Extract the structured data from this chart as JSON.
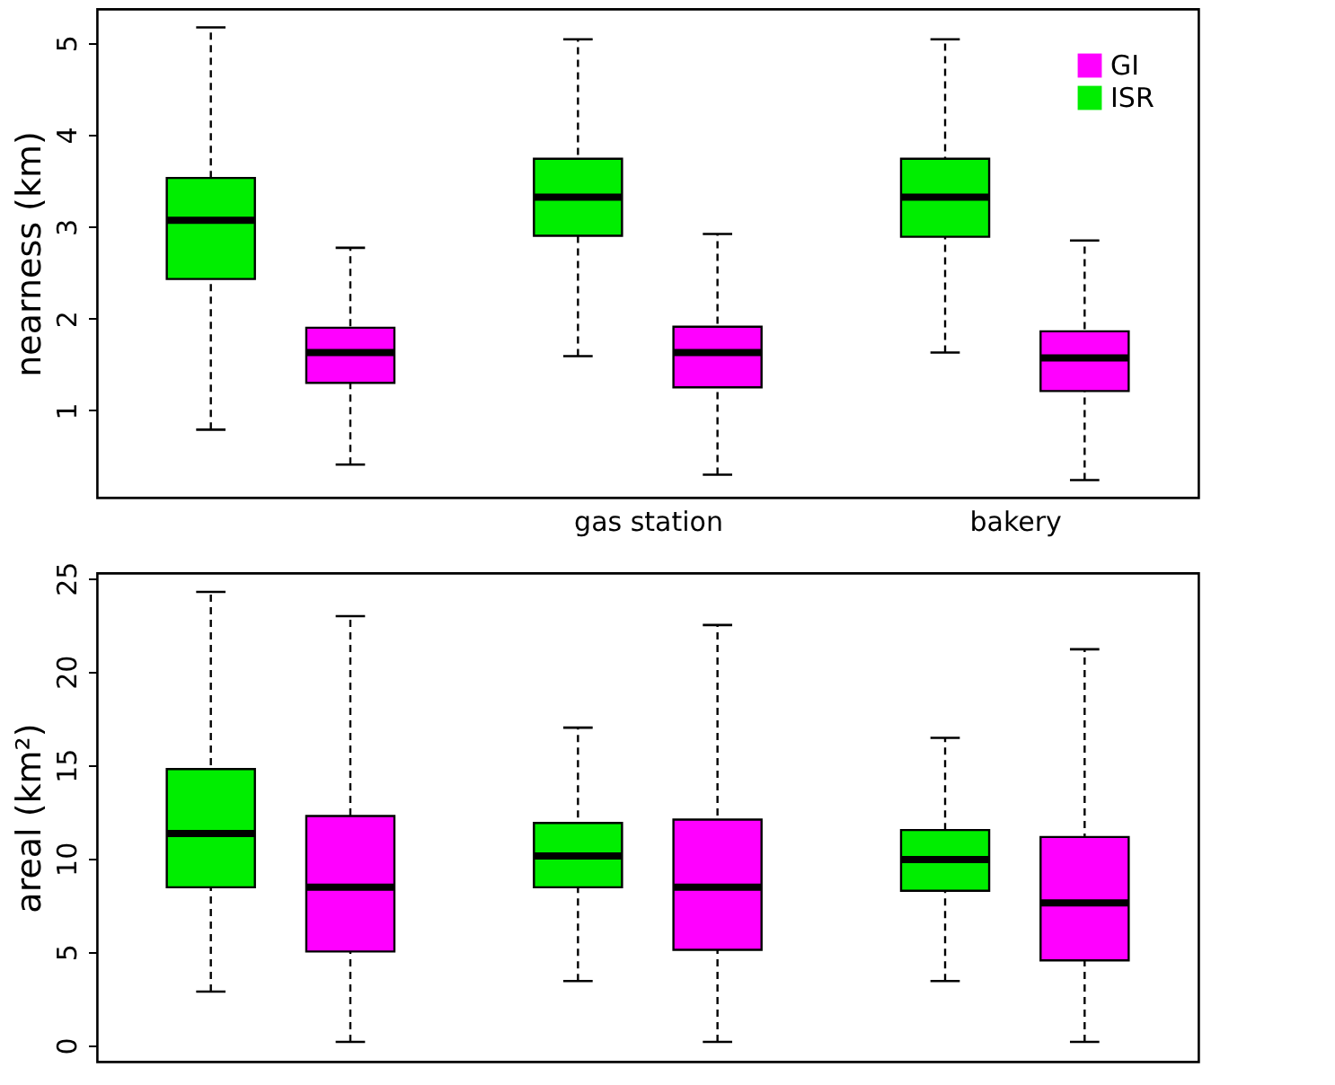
{
  "chart_data": [
    {
      "type": "box",
      "categories": [
        null,
        "gas station",
        "bakery"
      ],
      "ylabel": "nearness (km)",
      "ylim": [
        0.05,
        5.37
      ],
      "yticks": [
        1,
        2,
        3,
        4,
        5
      ],
      "legend": "top right",
      "grid": false,
      "line_style": "dashed",
      "series": [
        {
          "name": "ISR",
          "color": "#00ee00",
          "boxes": [
            {
              "low": 0.79,
              "q1": 2.43,
              "median": 3.07,
              "q3": 3.53,
              "high": 5.17
            },
            {
              "low": 1.59,
              "q1": 2.9,
              "median": 3.32,
              "q3": 3.74,
              "high": 5.04
            },
            {
              "low": 1.63,
              "q1": 2.89,
              "median": 3.32,
              "q3": 3.74,
              "high": 5.04
            }
          ]
        },
        {
          "name": "GI",
          "color": "#ff00ff",
          "boxes": [
            {
              "low": 0.41,
              "q1": 1.3,
              "median": 1.63,
              "q3": 1.9,
              "high": 2.77
            },
            {
              "low": 0.3,
              "q1": 1.25,
              "median": 1.63,
              "q3": 1.91,
              "high": 2.92
            },
            {
              "low": 0.24,
              "q1": 1.21,
              "median": 1.57,
              "q3": 1.86,
              "high": 2.85
            }
          ]
        }
      ]
    },
    {
      "type": "box",
      "categories": [
        null,
        null,
        null
      ],
      "ylabel": "areal (km²)",
      "ylim": [
        -0.87,
        25.27
      ],
      "yticks": [
        0,
        5,
        10,
        15,
        20,
        25
      ],
      "tick_labels": "y",
      "grid": false,
      "line_style": "dashed",
      "series": [
        {
          "color": "#00ee00",
          "boxes": [
            {
              "low": 2.88,
              "q1": 8.46,
              "median": 11.34,
              "q3": 14.78,
              "high": 24.26
            },
            {
              "low": 3.44,
              "q1": 8.46,
              "median": 10.13,
              "q3": 11.9,
              "high": 17.0
            },
            {
              "low": 3.44,
              "q1": 8.27,
              "median": 9.94,
              "q3": 11.52,
              "high": 16.45
            }
          ]
        },
        {
          "color": "#ff00ff",
          "boxes": [
            {
              "low": 0.19,
              "q1": 5.02,
              "median": 8.46,
              "q3": 12.27,
              "high": 22.96
            },
            {
              "low": 0.19,
              "q1": 5.11,
              "median": 8.46,
              "q3": 12.08,
              "high": 22.49
            },
            {
              "low": 0.19,
              "q1": 4.55,
              "median": 7.62,
              "q3": 11.15,
              "high": 21.19
            }
          ]
        }
      ]
    }
  ]
}
